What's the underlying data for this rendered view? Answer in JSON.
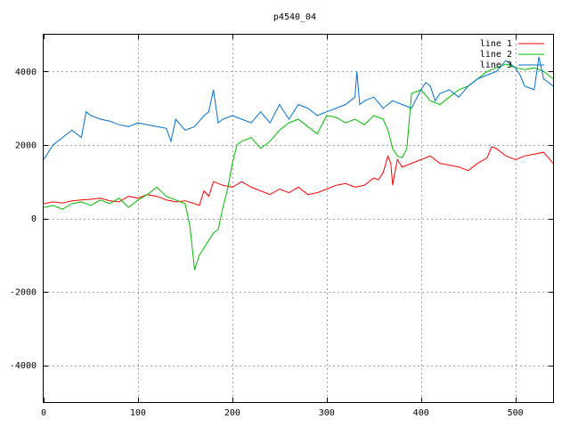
{
  "chart_data": {
    "type": "line",
    "title": "p4540_04",
    "xlim": [
      0,
      540
    ],
    "ylim": [
      -5000,
      5000
    ],
    "x_ticks": [
      0,
      100,
      200,
      300,
      400,
      500
    ],
    "y_ticks": [
      -4000,
      -2000,
      0,
      2000,
      4000
    ],
    "grid": true,
    "legend_position": "top-right",
    "series": [
      {
        "name": "line 1",
        "color": "#ff0000",
        "x": [
          0,
          10,
          20,
          30,
          40,
          50,
          60,
          70,
          80,
          90,
          100,
          110,
          120,
          130,
          140,
          150,
          160,
          165,
          170,
          175,
          180,
          185,
          190,
          200,
          210,
          220,
          230,
          240,
          250,
          260,
          270,
          280,
          290,
          300,
          310,
          320,
          330,
          340,
          350,
          355,
          360,
          365,
          368,
          370,
          372,
          375,
          380,
          390,
          400,
          410,
          420,
          430,
          440,
          450,
          460,
          470,
          475,
          480,
          490,
          500,
          510,
          520,
          530,
          540
        ],
        "y": [
          400,
          450,
          420,
          480,
          500,
          520,
          550,
          480,
          450,
          600,
          550,
          650,
          600,
          500,
          450,
          480,
          400,
          350,
          750,
          600,
          1000,
          950,
          900,
          850,
          1000,
          850,
          750,
          650,
          800,
          700,
          850,
          650,
          700,
          800,
          900,
          950,
          850,
          900,
          1100,
          1050,
          1250,
          1700,
          1500,
          900,
          1200,
          1600,
          1400,
          1500,
          1600,
          1700,
          1500,
          1450,
          1400,
          1300,
          1500,
          1650,
          1950,
          1900,
          1700,
          1600,
          1700,
          1750,
          1800,
          1500
        ]
      },
      {
        "name": "line 2",
        "color": "#00bb00",
        "x": [
          0,
          10,
          20,
          30,
          40,
          50,
          60,
          70,
          80,
          90,
          100,
          110,
          120,
          130,
          140,
          150,
          155,
          160,
          165,
          170,
          175,
          180,
          185,
          190,
          195,
          200,
          205,
          210,
          220,
          230,
          240,
          250,
          260,
          270,
          280,
          290,
          300,
          310,
          320,
          330,
          340,
          350,
          355,
          360,
          365,
          370,
          375,
          380,
          385,
          390,
          400,
          410,
          420,
          430,
          440,
          450,
          460,
          470,
          480,
          490,
          500,
          510,
          520,
          530,
          540
        ],
        "y": [
          300,
          350,
          250,
          400,
          450,
          350,
          500,
          400,
          550,
          300,
          500,
          650,
          850,
          600,
          500,
          400,
          -200,
          -1400,
          -1000,
          -800,
          -600,
          -400,
          -300,
          300,
          800,
          1500,
          2000,
          2100,
          2200,
          1900,
          2100,
          2400,
          2600,
          2700,
          2500,
          2300,
          2800,
          2750,
          2600,
          2700,
          2550,
          2800,
          2750,
          2700,
          2400,
          1900,
          1700,
          1650,
          1900,
          3400,
          3500,
          3200,
          3100,
          3300,
          3500,
          3600,
          3800,
          4000,
          4100,
          4200,
          4100,
          4050,
          4100,
          4000,
          3800
        ]
      },
      {
        "name": "line 3",
        "color": "#0070d0",
        "x": [
          0,
          10,
          20,
          30,
          40,
          45,
          50,
          60,
          70,
          80,
          90,
          100,
          110,
          120,
          130,
          135,
          140,
          150,
          160,
          170,
          175,
          180,
          185,
          190,
          200,
          210,
          220,
          230,
          240,
          250,
          260,
          270,
          280,
          290,
          300,
          310,
          320,
          330,
          332,
          335,
          340,
          350,
          360,
          370,
          380,
          390,
          400,
          405,
          410,
          415,
          420,
          430,
          440,
          450,
          460,
          470,
          480,
          490,
          500,
          505,
          510,
          520,
          525,
          530,
          540
        ],
        "y": [
          1600,
          2000,
          2200,
          2400,
          2200,
          2900,
          2800,
          2700,
          2650,
          2550,
          2500,
          2600,
          2550,
          2500,
          2450,
          2100,
          2700,
          2400,
          2500,
          2800,
          2900,
          3500,
          2600,
          2700,
          2800,
          2700,
          2600,
          2900,
          2600,
          3100,
          2700,
          3100,
          3000,
          2800,
          2900,
          3000,
          3100,
          3300,
          4000,
          3100,
          3200,
          3300,
          3000,
          3200,
          3100,
          3000,
          3500,
          3700,
          3600,
          3200,
          3400,
          3500,
          3300,
          3600,
          3800,
          3900,
          4000,
          4300,
          4100,
          3900,
          3600,
          3500,
          4400,
          3800,
          3600
        ]
      }
    ]
  }
}
